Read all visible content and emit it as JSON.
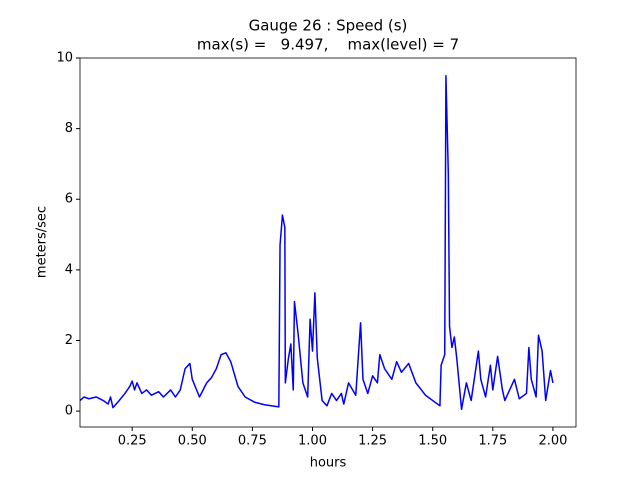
{
  "chart_data": {
    "type": "line",
    "title": "Gauge 26 : Speed (s)",
    "subtitle": "max(s) =   9.497,    max(level) = 7",
    "x_label": "hours",
    "y_label": "meters/sec",
    "xlim": [
      0.033,
      2.096
    ],
    "ylim": [
      -0.45,
      10
    ],
    "xticks": [
      0.25,
      {
        "value": 0.5,
        "label": "0.50"
      },
      0.75,
      {
        "value": 1.0,
        "label": "1.00"
      },
      1.25,
      {
        "value": 1.5,
        "label": "1.50"
      },
      1.75,
      {
        "value": 2.0,
        "label": "2.00"
      }
    ],
    "yticks": [
      0,
      2,
      4,
      6,
      8,
      10
    ],
    "series": [
      {
        "name": "speed",
        "color": "#0000ff",
        "x": [
          0.033,
          0.05,
          0.07,
          0.1,
          0.13,
          0.15,
          0.16,
          0.17,
          0.19,
          0.22,
          0.24,
          0.25,
          0.26,
          0.27,
          0.29,
          0.31,
          0.33,
          0.36,
          0.38,
          0.41,
          0.43,
          0.45,
          0.47,
          0.49,
          0.5,
          0.53,
          0.56,
          0.58,
          0.6,
          0.62,
          0.64,
          0.66,
          0.69,
          0.72,
          0.76,
          0.8,
          0.86,
          0.865,
          0.875,
          0.885,
          0.887,
          0.9,
          0.91,
          0.92,
          0.925,
          0.94,
          0.96,
          0.98,
          0.99,
          1.0,
          1.01,
          1.02,
          1.04,
          1.06,
          1.08,
          1.1,
          1.12,
          1.13,
          1.15,
          1.18,
          1.2,
          1.21,
          1.23,
          1.25,
          1.27,
          1.28,
          1.3,
          1.33,
          1.35,
          1.37,
          1.4,
          1.43,
          1.47,
          1.53,
          1.535,
          1.55,
          1.555,
          1.565,
          1.57,
          1.58,
          1.59,
          1.6,
          1.62,
          1.64,
          1.66,
          1.69,
          1.7,
          1.72,
          1.74,
          1.75,
          1.77,
          1.79,
          1.8,
          1.82,
          1.84,
          1.86,
          1.89,
          1.9,
          1.91,
          1.93,
          1.94,
          1.955,
          1.97,
          1.99,
          2.0
        ],
        "values": [
          0.3,
          0.4,
          0.35,
          0.4,
          0.3,
          0.2,
          0.4,
          0.1,
          0.25,
          0.5,
          0.7,
          0.85,
          0.6,
          0.8,
          0.5,
          0.6,
          0.45,
          0.55,
          0.4,
          0.6,
          0.4,
          0.6,
          1.2,
          1.35,
          0.9,
          0.4,
          0.8,
          0.95,
          1.2,
          1.6,
          1.65,
          1.4,
          0.7,
          0.4,
          0.25,
          0.18,
          0.12,
          4.7,
          5.55,
          5.2,
          0.8,
          1.5,
          1.9,
          0.6,
          3.1,
          2.2,
          0.8,
          0.4,
          2.6,
          1.7,
          3.35,
          1.5,
          0.3,
          0.15,
          0.5,
          0.3,
          0.5,
          0.2,
          0.8,
          0.45,
          2.5,
          0.9,
          0.5,
          1.0,
          0.8,
          1.6,
          1.2,
          0.9,
          1.4,
          1.1,
          1.35,
          0.8,
          0.45,
          0.15,
          1.3,
          1.6,
          9.497,
          6.7,
          2.4,
          1.8,
          2.1,
          1.5,
          0.05,
          0.8,
          0.3,
          1.7,
          0.9,
          0.4,
          1.3,
          0.6,
          1.55,
          0.6,
          0.3,
          0.6,
          0.9,
          0.35,
          0.5,
          1.8,
          0.9,
          0.4,
          2.15,
          1.7,
          0.3,
          1.15,
          0.8
        ]
      }
    ]
  }
}
